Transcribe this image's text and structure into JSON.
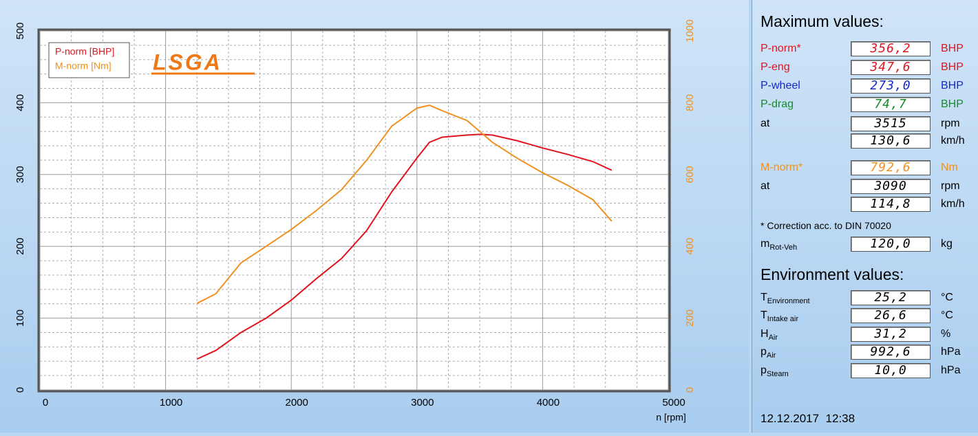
{
  "chart_data": {
    "type": "line",
    "x": [
      1250,
      1400,
      1600,
      1800,
      2000,
      2200,
      2400,
      2600,
      2800,
      3000,
      3100,
      3200,
      3400,
      3500,
      3600,
      3800,
      4000,
      4200,
      4400,
      4550
    ],
    "series": [
      {
        "name": "P-norm [BHP]",
        "color": "#e0141e",
        "values": [
          43,
          55,
          80,
          100,
          125,
          155,
          183,
          222,
          276,
          323,
          345,
          352,
          355,
          356,
          355,
          347,
          337,
          328,
          318,
          306
        ]
      },
      {
        "name": "M-norm [Nm]",
        "color": "#f0901e",
        "axis": "y2",
        "values": [
          241,
          268,
          354,
          400,
          447,
          500,
          558,
          640,
          735,
          785,
          793,
          778,
          750,
          720,
          690,
          645,
          605,
          570,
          530,
          470
        ]
      }
    ],
    "xlabel": "n [rpm]",
    "logo": "LSGA",
    "xlim": [
      0,
      5000
    ],
    "xticks": [
      0,
      1000,
      2000,
      3000,
      4000,
      5000
    ],
    "ylim": [
      0,
      500
    ],
    "yticks": [
      0,
      100,
      200,
      300,
      400,
      500
    ],
    "y2lim": [
      0,
      1000
    ],
    "y2ticks": [
      0,
      200,
      400,
      600,
      800,
      1000
    ],
    "grid": true,
    "minor_grid": true,
    "legend": "top-left"
  },
  "panel": {
    "title": "Maximum values:",
    "max_rows": [
      {
        "label": "P-norm*",
        "value": "356,2",
        "unit": "BHP",
        "color": "#e0141e"
      },
      {
        "label": "P-eng",
        "value": "347,6",
        "unit": "BHP",
        "color": "#e0141e"
      },
      {
        "label": "P-wheel",
        "value": "273,0",
        "unit": "BHP",
        "color": "#1428c8"
      },
      {
        "label": "P-drag",
        "value": "74,7",
        "unit": "BHP",
        "color": "#148c28"
      },
      {
        "label": "at",
        "value": "3515",
        "unit": "rpm",
        "color": "#000000"
      },
      {
        "value": "130,6",
        "unit": "km/h",
        "color": "#000000"
      },
      {
        "label": "M-norm*",
        "value": "792,6",
        "unit": "Nm",
        "color": "#f0901e"
      },
      {
        "label": "at",
        "value": "3090",
        "unit": "rpm",
        "color": "#000000"
      },
      {
        "value": "114,8",
        "unit": "km/h",
        "color": "#000000"
      }
    ],
    "note": "* Correction acc. to DIN 70020",
    "mass_row": {
      "label": "m",
      "sub": "Rot-Veh",
      "value": "120,0",
      "unit": "kg",
      "color": "#000000"
    },
    "env_title": "Environment values:",
    "env_rows": [
      {
        "label": "T",
        "sub": "Environment",
        "value": "25,2",
        "unit": "°C",
        "color": "#000000"
      },
      {
        "label": "T",
        "sub": "Intake air",
        "value": "26,6",
        "unit": "°C",
        "color": "#000000"
      },
      {
        "label": "H",
        "sub": "Air",
        "value": "31,2",
        "unit": "%",
        "color": "#000000"
      },
      {
        "label": "p",
        "sub": "Air",
        "value": "992,6",
        "unit": "hPa",
        "color": "#000000"
      },
      {
        "label": "p",
        "sub": "Steam",
        "value": "10,0",
        "unit": "hPa",
        "color": "#000000"
      }
    ],
    "timestamp": "12.12.2017  12:38"
  }
}
